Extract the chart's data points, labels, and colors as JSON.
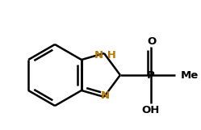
{
  "bg_color": "#ffffff",
  "line_color": "#000000",
  "N_color": "#bb7700",
  "line_width": 1.8,
  "figsize": [
    2.49,
    1.61
  ],
  "dpi": 100,
  "xlim": [
    0,
    249
  ],
  "ylim": [
    0,
    161
  ]
}
